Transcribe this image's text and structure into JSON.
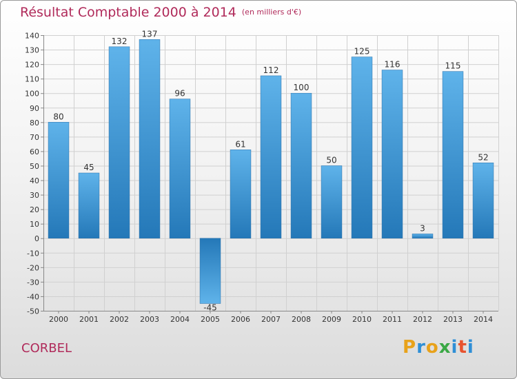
{
  "title": "Résultat Comptable 2000 à 2014",
  "unit": "(en milliers d'€)",
  "town": "CORBEL",
  "logo": {
    "letters": [
      "P",
      "r",
      "o",
      "x",
      "i",
      "t",
      "i"
    ],
    "colors": [
      "#e8a21a",
      "#2f8fd6",
      "#e8a21a",
      "#3aa845",
      "#2f8fd6",
      "#e8532f",
      "#2f8fd6"
    ]
  },
  "colors": {
    "accent": "#b02a5a",
    "bar_top": "#5fb3ea",
    "bar_bottom": "#2478b8"
  },
  "chart_data": {
    "type": "bar",
    "title": "Résultat Comptable 2000 à 2014",
    "categories": [
      "2000",
      "2001",
      "2002",
      "2003",
      "2004",
      "2005",
      "2006",
      "2007",
      "2008",
      "2009",
      "2010",
      "2011",
      "2012",
      "2013",
      "2014"
    ],
    "values": [
      80,
      45,
      132,
      137,
      96,
      -45,
      61,
      112,
      100,
      50,
      125,
      116,
      3,
      115,
      52
    ],
    "ylim": [
      -50,
      140
    ],
    "yticks": [
      140,
      130,
      120,
      110,
      100,
      90,
      80,
      70,
      60,
      50,
      40,
      30,
      20,
      10,
      0,
      -10,
      -20,
      -30,
      -40,
      -50
    ],
    "grid": true
  }
}
